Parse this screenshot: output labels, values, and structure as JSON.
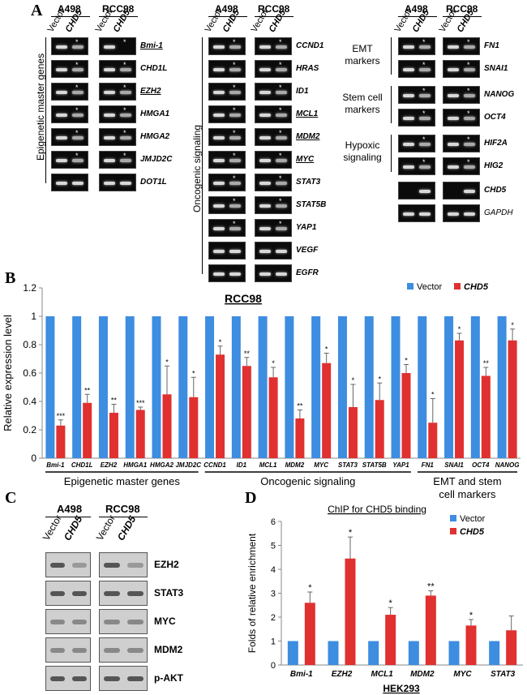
{
  "panel_labels": {
    "a": "A",
    "b": "B",
    "c": "C",
    "d": "D"
  },
  "panel_a": {
    "cell_lines": [
      "A498",
      "RCC98"
    ],
    "lanes": [
      "Vector",
      "CHD5"
    ],
    "group1": {
      "title": "Epigenetic master genes",
      "genes": [
        "Bmi-1",
        "CHD1L",
        "EZH2",
        "HMGA1",
        "HMGA2",
        "JMJD2C",
        "DOT1L"
      ]
    },
    "group2": {
      "title": "Oncogenic signaling",
      "genes": [
        "CCND1",
        "HRAS",
        "ID1",
        "MCL1",
        "MDM2",
        "MYC",
        "STAT3",
        "STAT5B",
        "YAP1",
        "VEGF",
        "EGFR"
      ]
    },
    "group3": {
      "emt_label": "EMT markers",
      "emt_genes": [
        "FN1",
        "SNAI1"
      ],
      "stem_label": "Stem cell markers",
      "stem_genes": [
        "NANOG",
        "OCT4"
      ],
      "hyp_label": "Hypoxic signaling",
      "hyp_genes": [
        "HIF2A",
        "HIG2"
      ],
      "ctrl_genes": [
        "CHD5",
        "GAPDH"
      ]
    }
  },
  "panel_c": {
    "cell_lines": [
      "A498",
      "RCC98"
    ],
    "lanes": [
      "Vector",
      "CHD5"
    ],
    "proteins": [
      "EZH2",
      "STAT3",
      "MYC",
      "MDM2",
      "p-AKT"
    ]
  },
  "chart_data": [
    {
      "type": "bar",
      "title": "RCC98",
      "ylabel": "Relative expression level",
      "ylim": [
        0,
        1.2
      ],
      "yticks": [
        "0",
        "0.2",
        "0.4",
        "0.6",
        "0.8",
        "1",
        "1.2"
      ],
      "categories": [
        "Bmi-1",
        "CHD1L",
        "EZH2",
        "HMGA1",
        "HMGA2",
        "JMJD2C",
        "CCND1",
        "ID1",
        "MCL1",
        "MDM2",
        "MYC",
        "STAT3",
        "STAT5B",
        "YAP1",
        "FN1",
        "SNAI1",
        "OCT4",
        "NANOG"
      ],
      "series": [
        {
          "name": "Vector",
          "color": "#3d8de0",
          "values": [
            1,
            1,
            1,
            1,
            1,
            1,
            1,
            1,
            1,
            1,
            1,
            1,
            1,
            1,
            1,
            1,
            1,
            1
          ]
        },
        {
          "name": "CHD5",
          "color": "#e03030",
          "values": [
            0.23,
            0.39,
            0.32,
            0.34,
            0.45,
            0.43,
            0.73,
            0.65,
            0.57,
            0.28,
            0.67,
            0.36,
            0.41,
            0.6,
            0.25,
            0.83,
            0.58,
            0.83
          ],
          "errors": [
            0.04,
            0.06,
            0.06,
            0.02,
            0.2,
            0.14,
            0.06,
            0.06,
            0.07,
            0.06,
            0.07,
            0.16,
            0.12,
            0.06,
            0.17,
            0.05,
            0.06,
            0.08
          ]
        }
      ],
      "significance": [
        "***",
        "**",
        "**",
        "***",
        "*",
        "*",
        "*",
        "**",
        "*",
        "**",
        "*",
        "*",
        "*",
        "*",
        "*",
        "*",
        "**",
        "*"
      ],
      "groups": [
        "Epigenetic master genes",
        "Oncogenic signaling",
        "EMT and stem cell markers"
      ]
    },
    {
      "type": "bar",
      "title": "ChIP for CHD5 binding",
      "ylabel": "Folds of relative enrichment",
      "xlabel": "HEK293",
      "ylim": [
        0,
        6
      ],
      "yticks": [
        "0",
        "1",
        "2",
        "3",
        "4",
        "5",
        "6"
      ],
      "categories": [
        "Bmi-1",
        "EZH2",
        "MCL1",
        "MDM2",
        "MYC",
        "STAT3"
      ],
      "series": [
        {
          "name": "Vector",
          "color": "#3d8de0",
          "values": [
            1,
            1,
            1,
            1,
            1,
            1
          ]
        },
        {
          "name": "CHD5",
          "color": "#e03030",
          "values": [
            2.6,
            4.45,
            2.1,
            2.9,
            1.65,
            1.45
          ],
          "errors": [
            0.45,
            0.9,
            0.3,
            0.2,
            0.25,
            0.6
          ]
        }
      ],
      "significance": [
        "*",
        "*",
        "*",
        "**",
        "*",
        ""
      ]
    }
  ]
}
